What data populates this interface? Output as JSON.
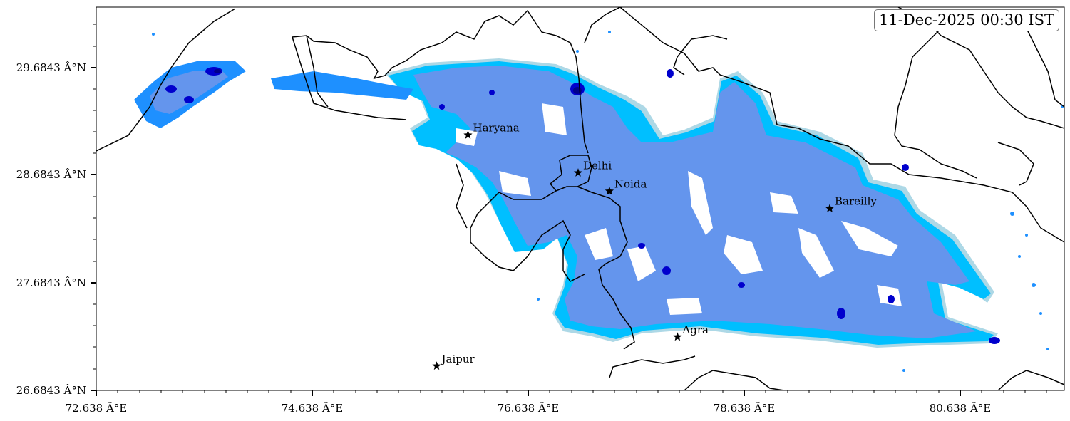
{
  "timestamp": "11-Dec-2025 00:30 IST",
  "axes": {
    "x_ticks": [
      "72.638 Â°E",
      "74.638 Â°E",
      "76.638 Â°E",
      "78.638 Â°E",
      "80.638 Â°E"
    ],
    "y_ticks": [
      "29.6843 Â°N",
      "28.6843 Â°N",
      "27.6843 Â°N",
      "26.6843 Â°N"
    ]
  },
  "cities": [
    {
      "name": "Haryana",
      "lon": 76.08,
      "lat": 29.05
    },
    {
      "name": "Delhi",
      "lon": 77.1,
      "lat": 28.7
    },
    {
      "name": "Noida",
      "lon": 77.39,
      "lat": 28.53
    },
    {
      "name": "Bareilly",
      "lon": 79.43,
      "lat": 28.37
    },
    {
      "name": "Agra",
      "lon": 78.02,
      "lat": 27.18
    },
    {
      "name": "Jaipur",
      "lon": 75.79,
      "lat": 26.91
    }
  ],
  "colors": {
    "level_1": "#add8e6",
    "level_2": "#00bfff",
    "level_3": "#1e90ff",
    "level_4": "#6495ed",
    "level_5": "#0000cd",
    "level_6": "#00008b",
    "marker": "#000000",
    "boundary": "#000000"
  }
}
